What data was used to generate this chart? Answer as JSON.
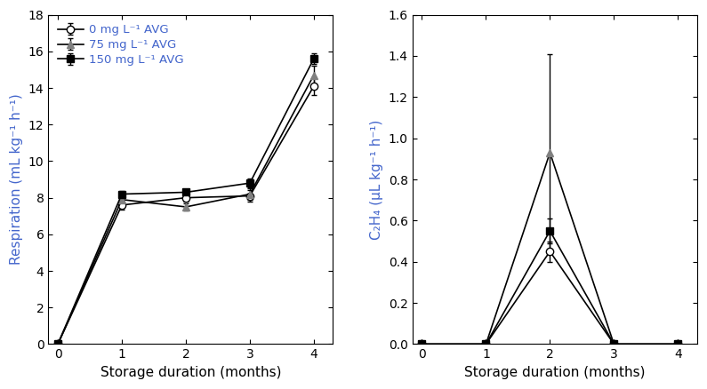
{
  "resp_x": [
    0,
    1,
    2,
    3,
    4
  ],
  "resp_0mg": [
    0.0,
    7.6,
    8.0,
    8.1,
    14.1
  ],
  "resp_75mg": [
    0.0,
    7.9,
    7.5,
    8.2,
    14.7
  ],
  "resp_150mg": [
    0.0,
    8.2,
    8.3,
    8.8,
    15.6
  ],
  "resp_0mg_err": [
    0.0,
    0.25,
    0.2,
    0.3,
    0.5
  ],
  "resp_75mg_err": [
    0.0,
    0.2,
    0.2,
    0.3,
    0.5
  ],
  "resp_150mg_err": [
    0.0,
    0.15,
    0.15,
    0.25,
    0.3
  ],
  "eth_x": [
    0,
    1,
    2,
    3,
    4
  ],
  "eth_0mg": [
    0.0,
    0.0,
    0.45,
    0.0,
    0.0
  ],
  "eth_75mg": [
    0.0,
    0.0,
    0.93,
    0.0,
    0.0
  ],
  "eth_150mg": [
    0.0,
    0.0,
    0.55,
    0.0,
    0.0
  ],
  "eth_0mg_err": [
    0.0,
    0.0,
    0.05,
    0.0,
    0.0
  ],
  "eth_75mg_err": [
    0.0,
    0.0,
    0.48,
    0.0,
    0.0
  ],
  "eth_150mg_err": [
    0.0,
    0.0,
    0.06,
    0.0,
    0.0
  ],
  "label_0mg": "0 mg L⁻¹ AVG",
  "label_75mg": "75 mg L⁻¹ AVG",
  "label_150mg": "150 mg L⁻¹ AVG",
  "xlabel": "Storage duration (months)",
  "ylabel_left": "Respiration (mL kg⁻¹ h⁻¹)",
  "ylabel_right": "C₂H₄ (μL kg⁻¹ h⁻¹)",
  "ylim_left": [
    0,
    18
  ],
  "ylim_right": [
    0,
    1.6
  ],
  "xlim": [
    -0.15,
    4.3
  ],
  "yticks_left": [
    0,
    2,
    4,
    6,
    8,
    10,
    12,
    14,
    16,
    18
  ],
  "yticks_right": [
    0.0,
    0.2,
    0.4,
    0.6,
    0.8,
    1.0,
    1.2,
    1.4,
    1.6
  ],
  "xticks": [
    0,
    1,
    2,
    3,
    4
  ],
  "legend_text_color": "#4466cc",
  "ylabel_color": "#4466cc",
  "tick_color": "black",
  "line_color_0mg": "black",
  "line_color_75mg": "black",
  "line_color_150mg": "black"
}
